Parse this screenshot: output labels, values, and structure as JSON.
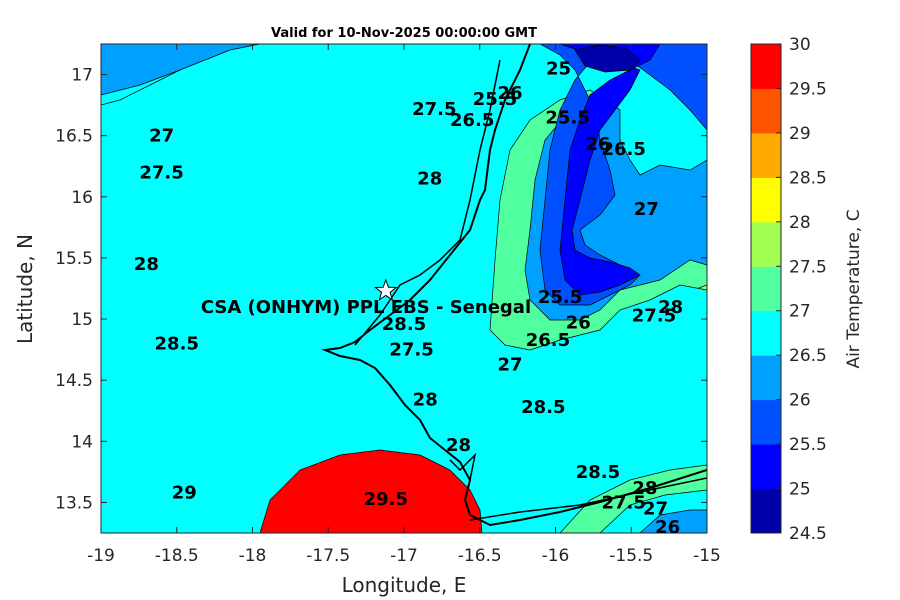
{
  "chart_data": {
    "type": "contour",
    "title": "Valid for 10-Nov-2025 00:00:00 GMT",
    "xlabel": "Longitude, E",
    "ylabel": "Latitude, N",
    "xlim": [
      -19,
      -15
    ],
    "ylim": [
      13.25,
      17.25
    ],
    "xticks": [
      -19,
      -18.5,
      -18,
      -17.5,
      -17,
      -16.5,
      -16,
      -15.5,
      -15
    ],
    "yticks": [
      13.5,
      14,
      14.5,
      15,
      15.5,
      16,
      16.5,
      17
    ],
    "xtick_labels": [
      "-19",
      "-18.5",
      "-18",
      "-17.5",
      "-17",
      "-16.5",
      "-16",
      "-15.5",
      "-15"
    ],
    "ytick_labels": [
      "13.5",
      "14",
      "14.5",
      "15",
      "15.5",
      "16",
      "16.5",
      "17"
    ],
    "colorbar": {
      "label": "Air Temperature, C",
      "levels": [
        24.5,
        25,
        25.5,
        26,
        26.5,
        27,
        27.5,
        28,
        28.5,
        29,
        29.5,
        30
      ],
      "tick_labels": [
        "24.5",
        "25",
        "25.5",
        "26",
        "26.5",
        "27",
        "27.5",
        "28",
        "28.5",
        "29",
        "29.5",
        "30"
      ],
      "colors": [
        "#0000aa",
        "#0000ff",
        "#0050ff",
        "#00a0ff",
        "#00ffff",
        "#50ffa0",
        "#a0ff50",
        "#ffff00",
        "#ffaa00",
        "#ff5500",
        "#ff0000",
        "#aa0000"
      ]
    },
    "contour_labels": [
      {
        "text": "25",
        "lon": -15.98,
        "lat": 17.05
      },
      {
        "text": "25.5",
        "lon": -15.92,
        "lat": 16.65
      },
      {
        "text": "26",
        "lon": -15.72,
        "lat": 16.43
      },
      {
        "text": "26.5",
        "lon": -15.55,
        "lat": 16.39
      },
      {
        "text": "27",
        "lon": -15.4,
        "lat": 15.9
      },
      {
        "text": "25.5",
        "lon": -16.4,
        "lat": 16.8
      },
      {
        "text": "26",
        "lon": -16.3,
        "lat": 16.85
      },
      {
        "text": "26.5",
        "lon": -16.55,
        "lat": 16.63
      },
      {
        "text": "27.5",
        "lon": -16.8,
        "lat": 16.72
      },
      {
        "text": "27",
        "lon": -18.6,
        "lat": 16.5
      },
      {
        "text": "27.5",
        "lon": -18.6,
        "lat": 16.2
      },
      {
        "text": "28",
        "lon": -16.83,
        "lat": 16.15
      },
      {
        "text": "28",
        "lon": -18.7,
        "lat": 15.45
      },
      {
        "text": "28.5",
        "lon": -18.5,
        "lat": 14.8
      },
      {
        "text": "28.5",
        "lon": -17.0,
        "lat": 14.96
      },
      {
        "text": "27.5",
        "lon": -16.95,
        "lat": 14.75
      },
      {
        "text": "28",
        "lon": -16.86,
        "lat": 14.34
      },
      {
        "text": "25.5",
        "lon": -15.97,
        "lat": 15.18
      },
      {
        "text": "26",
        "lon": -15.85,
        "lat": 14.97
      },
      {
        "text": "26.5",
        "lon": -16.05,
        "lat": 14.83
      },
      {
        "text": "27",
        "lon": -16.3,
        "lat": 14.63
      },
      {
        "text": "27.5",
        "lon": -15.35,
        "lat": 15.03
      },
      {
        "text": "28",
        "lon": -15.24,
        "lat": 15.1
      },
      {
        "text": "28.5",
        "lon": -16.08,
        "lat": 14.28
      },
      {
        "text": "28",
        "lon": -16.64,
        "lat": 13.97
      },
      {
        "text": "28.5",
        "lon": -15.72,
        "lat": 13.75
      },
      {
        "text": "28",
        "lon": -15.41,
        "lat": 13.62
      },
      {
        "text": "27.5",
        "lon": -15.55,
        "lat": 13.5
      },
      {
        "text": "27",
        "lon": -15.34,
        "lat": 13.45
      },
      {
        "text": "26",
        "lon": -15.26,
        "lat": 13.3
      },
      {
        "text": "29.5",
        "lon": -17.12,
        "lat": 13.53
      },
      {
        "text": "29",
        "lon": -18.45,
        "lat": 13.58
      }
    ],
    "site": {
      "label": "CSA (ONHYM) PPL EBS  - Senegal",
      "lon": -17.12,
      "lat": 15.23
    }
  }
}
